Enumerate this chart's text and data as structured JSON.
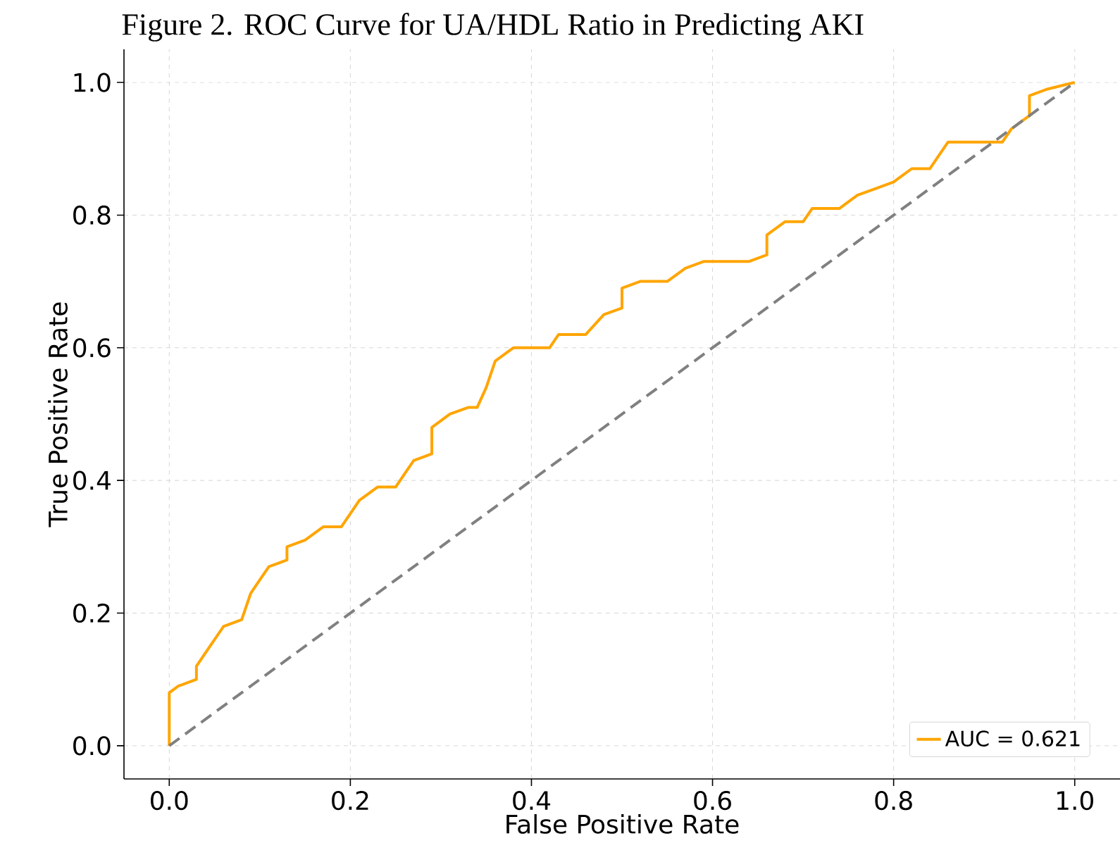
{
  "chart_data": {
    "type": "line",
    "title": "Figure 2. ROC Curve for UA/HDL Ratio in Predicting AKI",
    "xlabel": "False Positive Rate",
    "ylabel": "True Positive Rate",
    "series": [
      {
        "name": "AUC = 0.621",
        "color": "#ffa500",
        "line_style": "solid",
        "x": [
          0,
          0,
          0.01,
          0.03,
          0.03,
          0.04,
          0.05,
          0.06,
          0.08,
          0.09,
          0.1,
          0.11,
          0.13,
          0.13,
          0.15,
          0.17,
          0.19,
          0.2,
          0.21,
          0.23,
          0.25,
          0.26,
          0.27,
          0.29,
          0.29,
          0.31,
          0.33,
          0.34,
          0.35,
          0.36,
          0.38,
          0.42,
          0.43,
          0.46,
          0.48,
          0.5,
          0.5,
          0.52,
          0.55,
          0.57,
          0.59,
          0.64,
          0.66,
          0.66,
          0.68,
          0.7,
          0.71,
          0.74,
          0.76,
          0.78,
          0.8,
          0.82,
          0.84,
          0.85,
          0.86,
          0.92,
          0.93,
          0.95,
          0.95,
          0.97,
          1
        ],
        "values": [
          0,
          0.08,
          0.09,
          0.1,
          0.12,
          0.14,
          0.16,
          0.18,
          0.19,
          0.23,
          0.25,
          0.27,
          0.28,
          0.3,
          0.31,
          0.33,
          0.33,
          0.35,
          0.37,
          0.39,
          0.39,
          0.41,
          0.43,
          0.44,
          0.48,
          0.5,
          0.51,
          0.51,
          0.54,
          0.58,
          0.6,
          0.6,
          0.62,
          0.62,
          0.65,
          0.66,
          0.69,
          0.7,
          0.7,
          0.72,
          0.73,
          0.73,
          0.74,
          0.77,
          0.79,
          0.79,
          0.81,
          0.81,
          0.83,
          0.84,
          0.85,
          0.87,
          0.87,
          0.89,
          0.91,
          0.91,
          0.93,
          0.95,
          0.98,
          0.99,
          1
        ]
      },
      {
        "color": "#808080",
        "line_style": "dashed",
        "x": [
          0,
          1
        ],
        "values": [
          0,
          1
        ]
      }
    ],
    "xlim": [
      -0.05,
      1.05
    ],
    "ylim": [
      -0.05,
      1.05
    ],
    "xticks": [
      {
        "value": 0,
        "label": "0.0"
      },
      0.2,
      0.4,
      0.6,
      0.8,
      {
        "value": 1,
        "label": "1.0"
      }
    ],
    "yticks": [
      {
        "value": 0,
        "label": "0.0"
      },
      0.2,
      0.4,
      0.6,
      0.8,
      {
        "value": 1,
        "label": "1.0"
      }
    ],
    "grid": true,
    "legend": "bottom right",
    "marker": "none"
  }
}
